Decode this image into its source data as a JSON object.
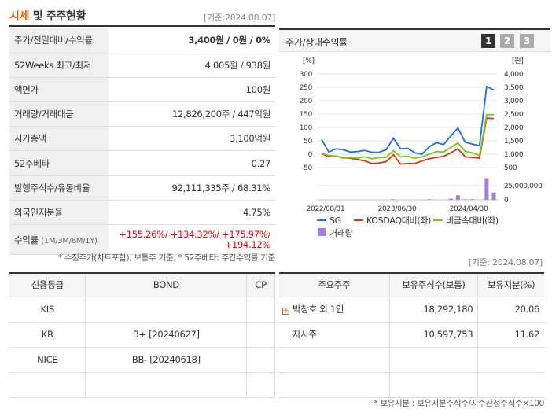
{
  "header": {
    "title_a": "시세",
    "title_b": " 및 주주현황",
    "date": "[기준:2024.08.07]"
  },
  "stats": [
    {
      "k": "주가/전일대비/수익률",
      "v": "3,400원 / 0원 / 0%"
    },
    {
      "k": "52Weeks 최고/최저",
      "v": "4,005원 / 938원"
    },
    {
      "k": "액면가",
      "v": "100원"
    },
    {
      "k": "거래량/거래대금",
      "v": "12,826,200주 / 447억원"
    },
    {
      "k": "시가총액",
      "v": "3,100억원"
    },
    {
      "k": "52주베타",
      "v": "0.27"
    },
    {
      "k": "발행주식수/유동비율",
      "v": "92,111,335주 / 68.31%"
    },
    {
      "k": "외국인지분율",
      "v": "4.75%"
    }
  ],
  "returns": {
    "k": "수익률",
    "k2": "(1M/3M/6M/1Y)",
    "v1": "+155.26%/ +134.32%/ +175.97%/",
    "v2": "+194.12%"
  },
  "note": "* 수정주가(차트포함), 보통주 기준, * 52주베타: 주간수익률 기준",
  "chart_panel": {
    "title": "주가/상대수익률",
    "pages": [
      "1",
      "2",
      "3"
    ]
  },
  "chart_data": {
    "type": "line",
    "left_unit": "[%]",
    "right_unit": "[원]",
    "left_ticks": [
      "300",
      "250",
      "200",
      "150",
      "100",
      "50",
      "0",
      "-50"
    ],
    "right_ticks": [
      "4,000",
      "3,500",
      "3,000",
      "2,500",
      "2,000",
      "1,500",
      "1,000",
      "500"
    ],
    "ylim": [
      -50,
      300
    ],
    "volume_ticks": [
      "25,000,000",
      "0"
    ],
    "x_ticks": [
      "2022/08/31",
      "2023/06/30",
      "2024/04/30"
    ],
    "series": [
      {
        "name": "SG",
        "color": "#1f6fe0",
        "values": [
          55,
          8,
          20,
          17,
          8,
          10,
          14,
          7,
          7,
          17,
          60,
          20,
          22,
          5,
          0,
          28,
          43,
          36,
          68,
          98,
          45,
          38,
          32,
          253,
          240
        ]
      },
      {
        "name": "KOSDAQ대비(좌)",
        "color": "#d83a0c",
        "values": [
          2,
          -10,
          -7,
          -13,
          -15,
          -20,
          -25,
          -35,
          -33,
          -28,
          -2,
          -37,
          -35,
          -35,
          -25,
          -17,
          -12,
          -8,
          5,
          20,
          -10,
          -12,
          -15,
          135,
          133
        ]
      },
      {
        "name": "비금속대비(좌)",
        "color": "#7fc41c",
        "values": [
          3,
          -5,
          -7,
          -15,
          -12,
          -15,
          -10,
          -17,
          -13,
          -12,
          13,
          -10,
          -8,
          -15,
          -10,
          0,
          10,
          8,
          25,
          42,
          10,
          5,
          -5,
          147,
          148
        ]
      }
    ],
    "volume": {
      "name": "거래량",
      "color": "#a57fdc",
      "values": [
        0,
        0,
        0,
        0,
        0,
        0,
        0,
        0,
        0,
        0,
        1000000,
        0,
        0,
        0,
        0,
        1000000,
        0,
        0,
        2000000,
        8000000,
        1000000,
        1000000,
        0,
        38000000,
        13000000
      ]
    }
  },
  "right_date": "[기준: 2024.08.07]",
  "credit": {
    "headers": [
      "신용등급",
      "BOND",
      "CP"
    ],
    "rows": [
      [
        "KIS",
        "",
        ""
      ],
      [
        "KR",
        "B+  [20240627]",
        ""
      ],
      [
        "NICE",
        "BB-  [20240618]",
        ""
      ],
      [
        "",
        "",
        ""
      ]
    ]
  },
  "holders": {
    "headers": [
      "주요주주",
      "보유주식수(보통)",
      "보유지분(%)"
    ],
    "rows": [
      [
        "박창호 외 1인",
        "18,292,180",
        "20.06"
      ],
      [
        "자사주",
        "10,597,753",
        "11.62"
      ],
      [
        "",
        "",
        ""
      ],
      [
        "",
        "",
        ""
      ]
    ]
  },
  "footnote": "* 보유지분 : 보유지분주식수/지수산정주식수×100"
}
